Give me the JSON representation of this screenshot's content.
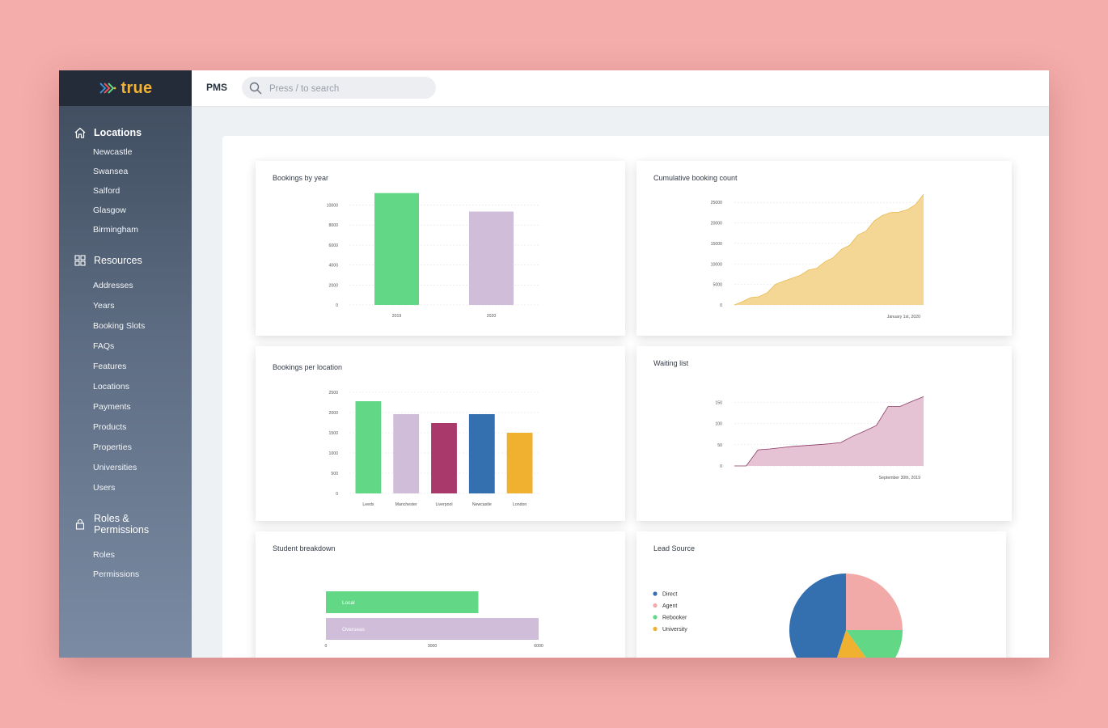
{
  "brand": {
    "name": "true"
  },
  "topbar": {
    "app_name": "PMS",
    "search_placeholder": "Press / to search"
  },
  "sidebar": {
    "locations": {
      "title": "Locations",
      "items": [
        "Newcastle",
        "Swansea",
        "Salford",
        "Glasgow",
        "Birmingham"
      ]
    },
    "resources": {
      "title": "Resources",
      "items": [
        "Addresses",
        "Years",
        "Booking Slots",
        "FAQs",
        "Features",
        "Locations",
        "Payments",
        "Products",
        "Properties",
        "Universities",
        "Users"
      ]
    },
    "roles": {
      "title_line1": "Roles &",
      "title_line2": "Permissions",
      "items": [
        "Roles",
        "Permissions"
      ]
    }
  },
  "colors": {
    "green": "#62d887",
    "lilac": "#cfbdd9",
    "plum": "#a9386b",
    "blue": "#3470b0",
    "orange": "#f0b030",
    "pink": "#f2aaa8",
    "area_yellow": "#f5d795",
    "area_yellow_stroke": "#e8b94e",
    "area_pink": "#e5c2d4",
    "area_pink_stroke": "#8c3a62"
  },
  "chart_data": [
    {
      "type": "bar",
      "title": "Bookings by year",
      "categories": [
        "2019",
        "2020"
      ],
      "values": [
        11200,
        9350
      ],
      "yticks": [
        0,
        2000,
        4000,
        6000,
        8000,
        10000
      ],
      "ylim": [
        0,
        11500
      ],
      "colors": [
        "green",
        "lilac"
      ],
      "grid": true
    },
    {
      "type": "area",
      "title": "Cumulative booking count",
      "x_label_shown": "January 1st, 2020",
      "yticks": [
        0,
        5000,
        10000,
        15000,
        20000,
        25000
      ],
      "ylim": [
        0,
        27000
      ],
      "values": [
        0,
        800,
        1800,
        2000,
        3000,
        5000,
        5800,
        6500,
        7200,
        8500,
        8900,
        10500,
        11500,
        13500,
        14500,
        17000,
        18000,
        20500,
        21800,
        22500,
        22600,
        23200,
        24400,
        27000
      ],
      "color": "area_yellow",
      "grid": true
    },
    {
      "type": "bar",
      "title": "Bookings per location",
      "categories": [
        "Leeds",
        "Manchester",
        "Liverpool",
        "Newcastle",
        "London"
      ],
      "values": [
        2280,
        1960,
        1740,
        1960,
        1500
      ],
      "yticks": [
        0,
        500,
        1000,
        1500,
        2000,
        2500
      ],
      "ylim": [
        0,
        2500
      ],
      "colors": [
        "green",
        "lilac",
        "plum",
        "blue",
        "orange"
      ],
      "grid": true
    },
    {
      "type": "area",
      "title": "Waiting list",
      "x_label_shown": "September 30th, 2019",
      "yticks": [
        0,
        50,
        100,
        150
      ],
      "ylim": [
        0,
        160
      ],
      "values": [
        0,
        0,
        38,
        40,
        43,
        46,
        48,
        50,
        52,
        55,
        70,
        82,
        95,
        140,
        140,
        152,
        163
      ],
      "color": "area_pink",
      "grid": true
    },
    {
      "type": "bar",
      "orientation": "horizontal",
      "title": "Student breakdown",
      "categories": [
        "Local",
        "Overseas"
      ],
      "values": [
        4300,
        6000
      ],
      "xticks": [
        0,
        3000,
        6000
      ],
      "xlim": [
        0,
        6000
      ],
      "colors": [
        "green",
        "lilac"
      ]
    },
    {
      "type": "pie",
      "title": "Lead Source",
      "labels": [
        "Direct",
        "Agent",
        "Rebooker",
        "University"
      ],
      "values": [
        45,
        25,
        15,
        15
      ],
      "colors": [
        "blue",
        "pink",
        "green",
        "orange"
      ],
      "legend": "left"
    }
  ]
}
